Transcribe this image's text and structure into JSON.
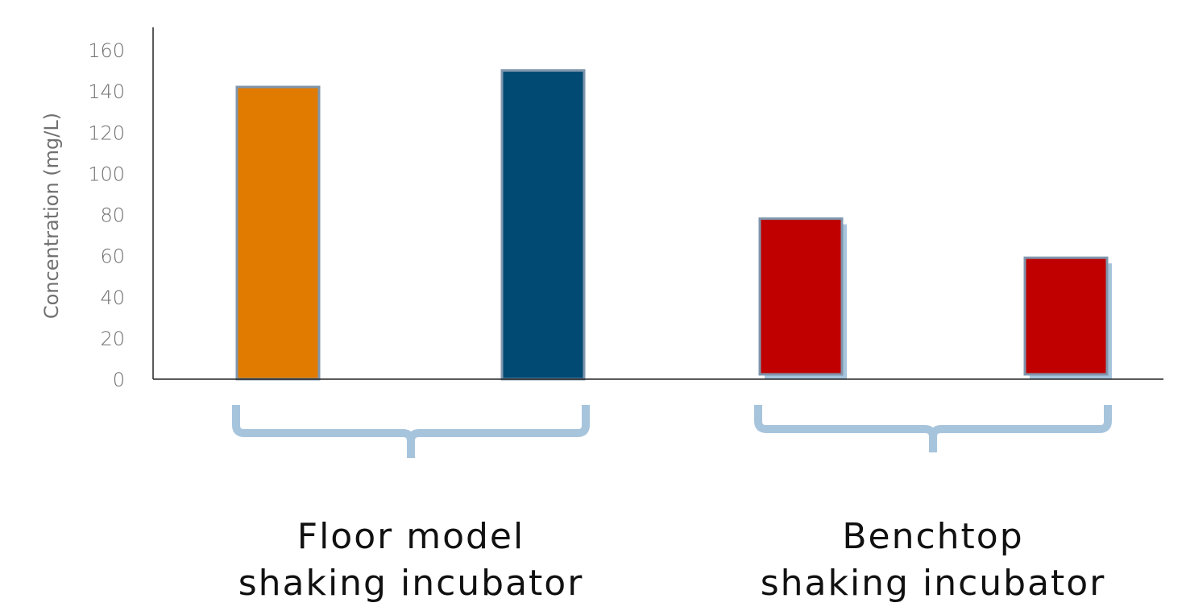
{
  "chart_data": {
    "type": "bar",
    "title": "",
    "ylabel": "Concentration (mg/L)",
    "ylim": [
      0,
      160
    ],
    "yticks": [
      0,
      20,
      40,
      60,
      80,
      100,
      120,
      140,
      160
    ],
    "grid": false,
    "legend": "none",
    "bars": [
      {
        "group": 0,
        "value": 142,
        "color": "#E07B00",
        "shadow": false
      },
      {
        "group": 0,
        "value": 150,
        "color": "#004A74",
        "shadow": false
      },
      {
        "group": 1,
        "value": 78,
        "color": "#C00000",
        "shadow": true
      },
      {
        "group": 1,
        "value": 59,
        "color": "#C00000",
        "shadow": true
      }
    ],
    "groups": [
      {
        "line1": "Floor model",
        "line2": "shaking incubator"
      },
      {
        "line1": "Benchtop",
        "line2": "shaking incubator"
      }
    ],
    "bar_outline_color": "#7F96AD",
    "brace_color": "#A7C4DD"
  }
}
